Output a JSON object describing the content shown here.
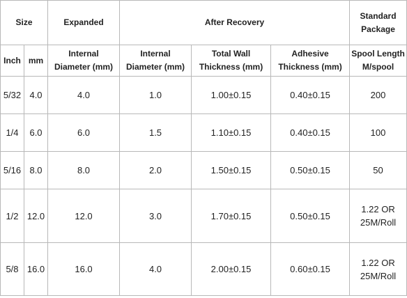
{
  "headers": {
    "size": "Size",
    "expanded": "Expanded",
    "after_recovery": "After Recovery",
    "standard_package_line1": "Standard",
    "standard_package_line2": "Package",
    "inch": "Inch",
    "mm": "mm",
    "exp_internal_line1": "Internal",
    "exp_internal_line2": "Diameter  (mm)",
    "rec_internal_line1": "Internal",
    "rec_internal_line2": "Diameter  (mm)",
    "total_wall_line1": "Total Wall",
    "total_wall_line2": "Thickness  (mm)",
    "adhesive_line1": "Adhesive",
    "adhesive_line2": "Thickness  (mm)",
    "spool_line1": "Spool Length",
    "spool_line2": "M/spool"
  },
  "rows": [
    {
      "inch": "5/32",
      "mm": "4.0",
      "expanded_id": "4.0",
      "recovered_id": "1.0",
      "total_wall": "1.00±0.15",
      "adhesive": "0.40±0.15",
      "spool_line1": "200",
      "spool_line2": ""
    },
    {
      "inch": "1/4",
      "mm": "6.0",
      "expanded_id": "6.0",
      "recovered_id": "1.5",
      "total_wall": "1.10±0.15",
      "adhesive": "0.40±0.15",
      "spool_line1": "100",
      "spool_line2": ""
    },
    {
      "inch": "5/16",
      "mm": "8.0",
      "expanded_id": "8.0",
      "recovered_id": "2.0",
      "total_wall": "1.50±0.15",
      "adhesive": "0.50±0.15",
      "spool_line1": "50",
      "spool_line2": ""
    },
    {
      "inch": "1/2",
      "mm": "12.0",
      "expanded_id": "12.0",
      "recovered_id": "3.0",
      "total_wall": "1.70±0.15",
      "adhesive": "0.50±0.15",
      "spool_line1": "1.22 OR",
      "spool_line2": "25M/Roll"
    },
    {
      "inch": "5/8",
      "mm": "16.0",
      "expanded_id": "16.0",
      "recovered_id": "4.0",
      "total_wall": "2.00±0.15",
      "adhesive": "0.60±0.15",
      "spool_line1": "1.22 OR",
      "spool_line2": "25M/Roll"
    }
  ]
}
